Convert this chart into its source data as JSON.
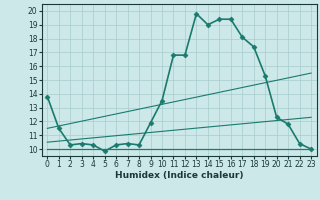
{
  "xlabel": "Humidex (Indice chaleur)",
  "bg_color": "#cce8e8",
  "line_color": "#1a7a6e",
  "xlim": [
    -0.5,
    23.5
  ],
  "ylim": [
    9.5,
    20.5
  ],
  "yticks": [
    10,
    11,
    12,
    13,
    14,
    15,
    16,
    17,
    18,
    19,
    20
  ],
  "xticks": [
    0,
    1,
    2,
    3,
    4,
    5,
    6,
    7,
    8,
    9,
    10,
    11,
    12,
    13,
    14,
    15,
    16,
    17,
    18,
    19,
    20,
    21,
    22,
    23
  ],
  "lines": [
    {
      "x": [
        0,
        1,
        2,
        3,
        4,
        5,
        6,
        7,
        8,
        9,
        10,
        11,
        12,
        13,
        14,
        15,
        16,
        17,
        18,
        19,
        20,
        21,
        22,
        23
      ],
      "y": [
        13.8,
        11.5,
        10.3,
        10.4,
        10.3,
        9.85,
        10.3,
        10.4,
        10.3,
        11.9,
        13.5,
        16.8,
        16.8,
        19.8,
        19.0,
        19.4,
        19.4,
        18.1,
        17.4,
        15.3,
        12.3,
        11.8,
        10.4,
        10.0
      ],
      "marker": "D",
      "markersize": 2.5,
      "linewidth": 1.2
    },
    {
      "x": [
        0,
        23
      ],
      "y": [
        10.0,
        10.0
      ],
      "marker": null,
      "markersize": 0,
      "linewidth": 0.8
    },
    {
      "x": [
        0,
        23
      ],
      "y": [
        11.5,
        15.5
      ],
      "marker": null,
      "markersize": 0,
      "linewidth": 0.8
    },
    {
      "x": [
        0,
        23
      ],
      "y": [
        10.5,
        12.3
      ],
      "marker": null,
      "markersize": 0,
      "linewidth": 0.8
    },
    {
      "x": [
        0,
        23
      ],
      "y": [
        10.0,
        10.0
      ],
      "marker": null,
      "markersize": 0,
      "linewidth": 0.8
    }
  ],
  "grid_color": "#a8cccc",
  "grid_alpha": 1.0,
  "tick_fontsize": 5.5,
  "xlabel_fontsize": 6.5,
  "tick_color": "#1a3a3a",
  "spine_color": "#1a3a3a"
}
